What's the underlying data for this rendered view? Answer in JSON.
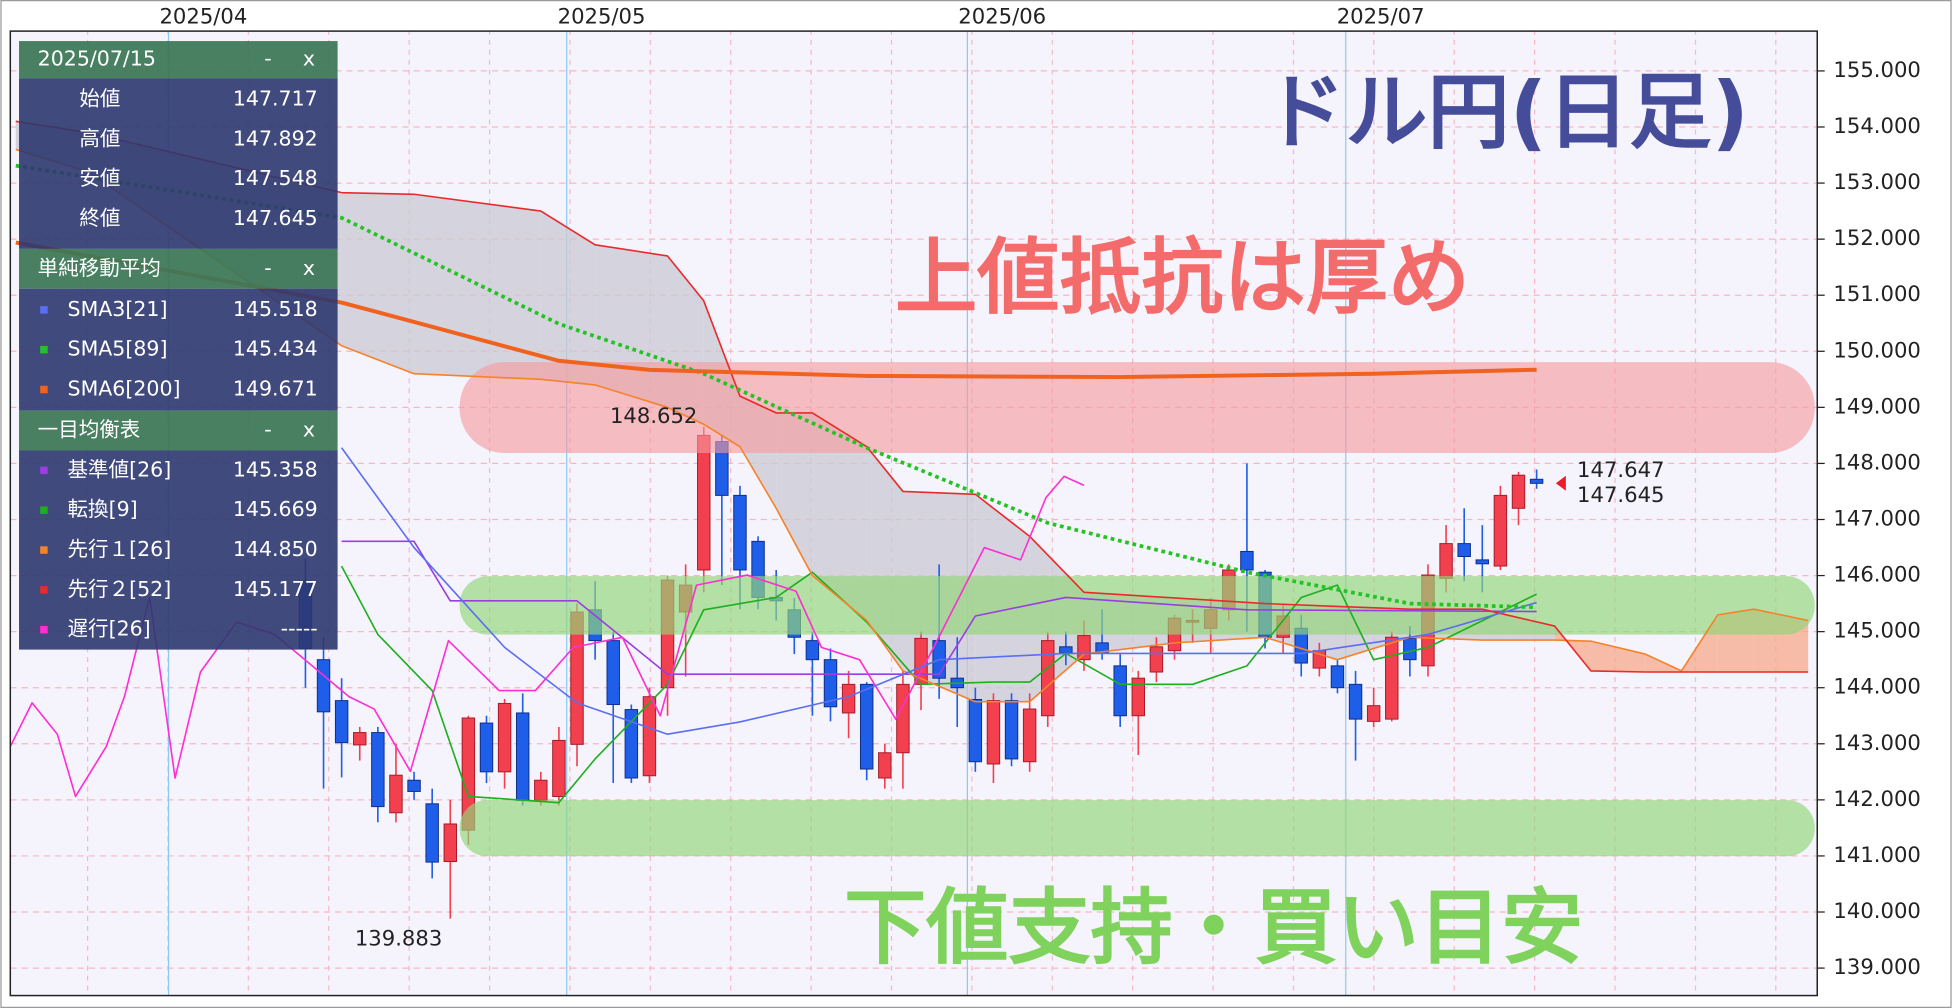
{
  "chart_data": {
    "type": "candlestick",
    "title": "ドル円(日足)",
    "annotations": [
      {
        "text": "上値抵抗は厚め",
        "color": "#f36b6b"
      },
      {
        "text": "下値支持・買い目安",
        "color": "#7fd35c"
      }
    ],
    "categories": [
      null,
      null,
      null,
      null,
      null,
      null,
      null,
      null,
      null,
      null,
      null,
      null,
      null,
      null,
      null,
      null,
      null,
      null,
      null,
      null,
      null,
      null,
      null,
      null,
      null,
      null,
      null,
      null,
      null,
      null,
      null,
      null,
      null,
      null,
      null,
      null,
      null,
      null,
      null,
      null,
      null,
      null,
      null,
      null,
      null,
      null,
      null,
      null,
      null,
      null,
      null,
      null,
      null,
      null,
      null,
      null,
      null,
      null,
      null,
      null,
      null,
      null,
      null,
      null,
      null,
      null,
      null,
      null,
      null
    ],
    "open": [
      145.9,
      144.5,
      143.77,
      142.98,
      143.2,
      141.77,
      142.35,
      141.93,
      140.9,
      141.46,
      143.37,
      142.5,
      143.55,
      141.99,
      142.06,
      142.99,
      145.39,
      144.84,
      143.61,
      142.43,
      144.0,
      145.35,
      146.1,
      148.39,
      147.43,
      146.61,
      145.61,
      145.39,
      144.84,
      144.5,
      143.55,
      144.06,
      142.39,
      142.84,
      144.06,
      144.84,
      144.17,
      143.79,
      142.64,
      143.77,
      142.68,
      143.5,
      144.73,
      144.5,
      144.8,
      144.39,
      143.5,
      144.28,
      144.66,
      145.17,
      145.06,
      145.39,
      146.43,
      146.06,
      144.9,
      145.06,
      144.35,
      144.39,
      144.06,
      143.4,
      143.44,
      144.88,
      144.39,
      145.95,
      146.57,
      146.28,
      146.17,
      147.2,
      147.717
    ],
    "high": [
      146.3,
      144.9,
      144.17,
      143.3,
      143.3,
      143.0,
      142.5,
      142.2,
      142.0,
      143.5,
      143.5,
      143.8,
      143.9,
      142.5,
      143.3,
      145.5,
      145.9,
      145.0,
      143.7,
      144.0,
      146.0,
      146.2,
      148.652,
      148.5,
      147.6,
      146.7,
      146.1,
      145.6,
      145.0,
      144.7,
      144.3,
      144.1,
      143.0,
      144.3,
      145.0,
      146.2,
      144.9,
      144.0,
      143.9,
      143.9,
      143.9,
      145.0,
      145.0,
      145.2,
      145.4,
      144.6,
      144.3,
      144.9,
      145.3,
      145.4,
      145.6,
      146.2,
      148.0,
      146.1,
      145.5,
      145.3,
      144.8,
      144.5,
      144.3,
      144.0,
      145.0,
      145.1,
      146.2,
      146.9,
      147.2,
      146.9,
      147.6,
      147.85,
      147.892
    ],
    "low": [
      144.0,
      142.2,
      142.4,
      142.7,
      141.6,
      141.6,
      142.0,
      140.6,
      139.883,
      141.2,
      142.3,
      142.2,
      141.9,
      141.9,
      141.9,
      142.6,
      144.5,
      142.3,
      142.3,
      142.3,
      143.5,
      144.2,
      145.7,
      145.83,
      145.4,
      145.4,
      145.2,
      144.6,
      143.5,
      143.4,
      143.1,
      142.35,
      142.2,
      142.2,
      143.6,
      143.8,
      143.3,
      142.5,
      142.3,
      142.6,
      142.5,
      143.3,
      144.4,
      144.3,
      144.5,
      143.3,
      142.8,
      144.1,
      144.5,
      144.8,
      144.6,
      145.2,
      145.0,
      144.7,
      144.6,
      144.2,
      144.2,
      143.9,
      142.7,
      143.3,
      143.4,
      144.2,
      144.2,
      145.7,
      145.9,
      145.7,
      146.1,
      146.9,
      147.548
    ],
    "close": [
      144.7,
      143.57,
      143.02,
      143.2,
      141.88,
      142.44,
      142.15,
      140.89,
      141.57,
      143.46,
      142.5,
      143.72,
      141.99,
      142.35,
      143.06,
      145.35,
      144.84,
      143.7,
      142.39,
      143.84,
      145.92,
      145.83,
      148.5,
      147.43,
      146.1,
      145.61,
      145.55,
      144.9,
      144.5,
      143.66,
      144.06,
      142.55,
      142.84,
      144.06,
      144.88,
      144.17,
      144.0,
      142.68,
      143.77,
      142.73,
      143.62,
      144.84,
      144.62,
      144.93,
      144.62,
      143.5,
      144.17,
      144.73,
      145.24,
      145.2,
      145.39,
      146.1,
      146.1,
      144.9,
      145.28,
      144.44,
      144.66,
      144.0,
      143.44,
      143.68,
      144.9,
      144.5,
      146.01,
      146.57,
      146.34,
      146.21,
      147.43,
      147.79,
      147.645
    ],
    "up_color": "#f2404e",
    "down_color": "#1f5ee8",
    "xlim": [
      -16.3,
      83.5
    ],
    "xticks": [
      {
        "value": -7.56,
        "label": "2025/04"
      },
      {
        "value": 14.43,
        "label": "2025/05"
      },
      {
        "value": 36.56,
        "label": "2025/06"
      },
      {
        "value": 57.46,
        "label": "2025/07"
      }
    ],
    "ylim": [
      138.51,
      155.71
    ],
    "yticks": [
      {
        "value": 139,
        "label": "139.000"
      },
      {
        "value": 140,
        "label": "140.000"
      },
      {
        "value": 141,
        "label": "141.000"
      },
      {
        "value": 142,
        "label": "142.000"
      },
      {
        "value": 143,
        "label": "143.000"
      },
      {
        "value": 144,
        "label": "144.000"
      },
      {
        "value": 145,
        "label": "145.000"
      },
      {
        "value": 146,
        "label": "146.000"
      },
      {
        "value": 147,
        "label": "147.000"
      },
      {
        "value": 148,
        "label": "148.000"
      },
      {
        "value": 149,
        "label": "149.000"
      },
      {
        "value": 150,
        "label": "150.000"
      },
      {
        "value": 151,
        "label": "151.000"
      },
      {
        "value": 152,
        "label": "152.000"
      },
      {
        "value": 153,
        "label": "153.000"
      },
      {
        "value": 154,
        "label": "154.000"
      },
      {
        "value": 155,
        "label": "155.000"
      }
    ],
    "grid": true,
    "sma": [
      {
        "name": "SMA3[21]",
        "panel_value": "145.518",
        "color": "#5b6ef2",
        "style": "solid",
        "x": [
          2,
          6,
          11,
          15,
          20,
          24,
          30,
          35,
          42,
          49,
          55,
          62,
          68
        ],
        "values": [
          148.28,
          146.5,
          144.72,
          143.73,
          143.17,
          143.39,
          143.84,
          144.5,
          144.61,
          144.61,
          144.61,
          144.95,
          145.518
        ]
      },
      {
        "name": "SMA5[89]",
        "panel_value": "145.434",
        "color": "#22c322",
        "style": "dotted",
        "x": [
          -16,
          2,
          14,
          22,
          31,
          41,
          52,
          61,
          68
        ],
        "values": [
          153.31,
          152.38,
          150.49,
          149.6,
          148.28,
          146.94,
          146.06,
          145.5,
          145.434
        ]
      },
      {
        "name": "SMA6[200]",
        "panel_value": "149.671",
        "color": "#f0621e",
        "style": "thick",
        "x": [
          -16,
          2,
          14,
          19,
          31,
          45,
          59,
          68
        ],
        "values": [
          151.94,
          150.87,
          149.83,
          149.67,
          149.56,
          149.54,
          149.6,
          149.671
        ]
      }
    ],
    "ichimoku": [
      {
        "name": "基準値[26]",
        "panel_value": "145.358",
        "color": "#9a3ee0",
        "style": "solid",
        "x": [
          2,
          6,
          8,
          15,
          20,
          35,
          37,
          42,
          52,
          68
        ],
        "values": [
          146.61,
          146.61,
          145.55,
          145.55,
          144.24,
          144.24,
          145.28,
          145.61,
          145.39,
          145.358
        ]
      },
      {
        "name": "転換[9]",
        "panel_value": "145.669",
        "color": "#1fae1f",
        "style": "solid",
        "x": [
          2,
          4,
          7,
          9,
          14,
          16,
          20,
          22,
          26,
          28,
          31,
          34,
          38,
          40,
          42,
          45,
          49,
          52,
          55,
          57,
          59,
          62,
          68
        ],
        "values": [
          146.17,
          144.95,
          143.95,
          142.06,
          141.95,
          142.73,
          144.06,
          145.39,
          145.61,
          146.06,
          145.17,
          144.06,
          144.1,
          144.1,
          144.61,
          144.06,
          144.06,
          144.39,
          145.61,
          145.83,
          144.5,
          144.72,
          145.669
        ]
      },
      {
        "name": "先行１[26]",
        "panel_value": "144.850",
        "color": "#f4832a",
        "style": "solid",
        "x": [
          -16,
          -12,
          2,
          6,
          13,
          16,
          20,
          22,
          24,
          26,
          28,
          31,
          33,
          37,
          40,
          43,
          48,
          53,
          57,
          61,
          65,
          69,
          71,
          74,
          76,
          78,
          80,
          83
        ],
        "values": [
          153.6,
          153.2,
          150.1,
          149.6,
          149.5,
          149.4,
          149.0,
          148.7,
          148.3,
          147.2,
          146.0,
          145.2,
          144.3,
          143.75,
          143.75,
          144.6,
          144.8,
          144.9,
          144.5,
          144.9,
          144.85,
          144.85,
          144.83,
          144.6,
          144.3,
          145.3,
          145.4,
          145.2
        ]
      },
      {
        "name": "先行２[52]",
        "panel_value": "145.177",
        "color": "#ea2a2a",
        "style": "solid",
        "x": [
          -16,
          -12,
          2,
          6,
          13,
          16,
          20,
          22,
          24,
          26,
          28,
          31,
          33,
          37,
          40,
          43,
          48,
          53,
          57,
          61,
          65,
          69,
          71,
          74,
          76,
          78,
          80,
          83
        ],
        "values": [
          154.1,
          153.9,
          152.83,
          152.8,
          152.5,
          151.9,
          151.7,
          150.9,
          149.2,
          148.9,
          148.9,
          148.3,
          147.5,
          147.45,
          146.7,
          145.7,
          145.6,
          145.5,
          145.45,
          145.4,
          145.4,
          145.1,
          144.3,
          144.28,
          144.28,
          144.28,
          144.28,
          144.28
        ]
      },
      {
        "name": "遅行[26]",
        "panel_value": "-----",
        "color": "#ff2ed2",
        "style": "solid",
        "x": [
          -16.3,
          -15.1,
          -13.7,
          -12.7,
          -11,
          -10,
          -8.6,
          -7.2,
          -5.8,
          -3.8,
          -1.7,
          2.4,
          3.8,
          5.8,
          7.9,
          10.7,
          12.7,
          14.8,
          17.5,
          19.6,
          21.6,
          24.4,
          27.1,
          28.5,
          30.6,
          32.6,
          34.7,
          37.5,
          39.5,
          40.9,
          41.9,
          43
        ],
        "values": [
          142.95,
          143.73,
          143.17,
          142.06,
          142.95,
          143.84,
          145.61,
          142.39,
          144.28,
          145.17,
          144.95,
          143.84,
          143.62,
          142.51,
          144.84,
          143.95,
          143.95,
          144.72,
          144.9,
          143.5,
          145.83,
          146.01,
          145.72,
          144.72,
          144.5,
          143.44,
          144.72,
          146.5,
          146.28,
          147.39,
          147.77,
          147.61
        ]
      }
    ],
    "cloud_colors": {
      "up": "#f6a98a",
      "down": "#c9c9d3"
    },
    "extremes": [
      {
        "value": 148.652,
        "color": "#f26a6a"
      },
      {
        "value": 139.883,
        "color": "#ea2030"
      }
    ],
    "price_marks": [
      {
        "value": 147.647,
        "color": "#ea1c2a"
      },
      {
        "value": 147.645,
        "color": "#2f5fe6"
      }
    ]
  },
  "info_panel": {
    "header": "2025/07/15",
    "minimize": "-",
    "close": "x",
    "ohlc": [
      {
        "label": "始値",
        "value": "147.717"
      },
      {
        "label": "高値",
        "value": "147.892"
      },
      {
        "label": "安値",
        "value": "147.548"
      },
      {
        "label": "終値",
        "value": "147.645"
      }
    ],
    "sma_title": "単純移動平均",
    "ichimoku_title": "一目均衡表"
  }
}
